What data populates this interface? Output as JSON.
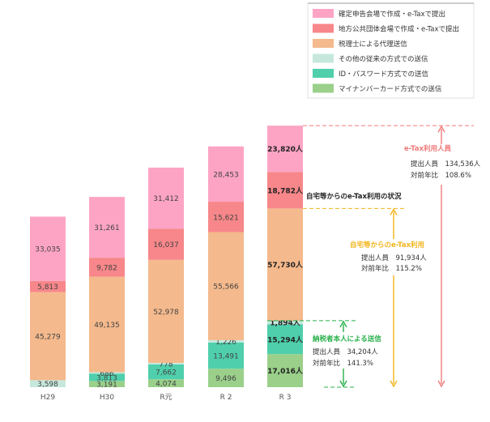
{
  "chart_data": {
    "type": "bar",
    "stacked": true,
    "categories": [
      "H29",
      "H30",
      "R元",
      "R 2",
      "R 3"
    ],
    "series": [
      {
        "name": "マイナンバーカード方式での送信",
        "color": "#9ad08a",
        "values": [
          0,
          3191,
          4074,
          9496,
          17016
        ],
        "labels": [
          "",
          "3,191",
          "4,074",
          "9,496",
          "17,016人"
        ]
      },
      {
        "name": "ID・パスワード方式での送信",
        "color": "#4fcfab",
        "values": [
          0,
          3813,
          7662,
          13491,
          15294
        ],
        "labels": [
          "",
          "3,813",
          "7,662",
          "13,491",
          "15,294人"
        ]
      },
      {
        "name": "その他の従来の方式での送信",
        "color": "#c6e8dc",
        "values": [
          3598,
          686,
          778,
          1226,
          1894
        ],
        "labels": [
          "3,598",
          "686",
          "778",
          "1,226",
          "1,894人"
        ]
      },
      {
        "name": "税理士による代理送信",
        "color": "#f4b98c",
        "values": [
          45279,
          49135,
          52978,
          55566,
          57730
        ],
        "labels": [
          "45,279",
          "49,135",
          "52,978",
          "55,566",
          "57,730人"
        ]
      },
      {
        "name": "地方公共団体会場で作成・e-Taxで提出",
        "color": "#f7878a",
        "values": [
          5813,
          9782,
          16037,
          15621,
          18782
        ],
        "labels": [
          "5,813",
          "9,782",
          "16,037",
          "15,621",
          "18,782人"
        ]
      },
      {
        "name": "確定申告会場で作成・e-Taxで提出",
        "color": "#fda4c4",
        "values": [
          33035,
          31261,
          31412,
          28453,
          23820
        ],
        "labels": [
          "33,035",
          "31,261",
          "31,412",
          "28,453",
          "23,820人"
        ]
      }
    ],
    "legend_position": "top-right",
    "annotations": {
      "home_heading": "自宅等からのe-Tax利用の状況",
      "etax_total": {
        "title": "e-Tax利用人員",
        "line1": "提出人員　134,536人",
        "line2": "対前年比　108.6%",
        "color": "#f07a7a"
      },
      "home_total": {
        "title": "自宅等からのe-Tax利用",
        "line1": "提出人員　91,934人",
        "line2": "対前年比　115.2%",
        "color": "#f2b41c"
      },
      "self_total": {
        "title": "納税者本人による送信",
        "line1": "提出人員　34,204人",
        "line2": "対前年比　141.3%",
        "color": "#28b04a"
      }
    }
  }
}
